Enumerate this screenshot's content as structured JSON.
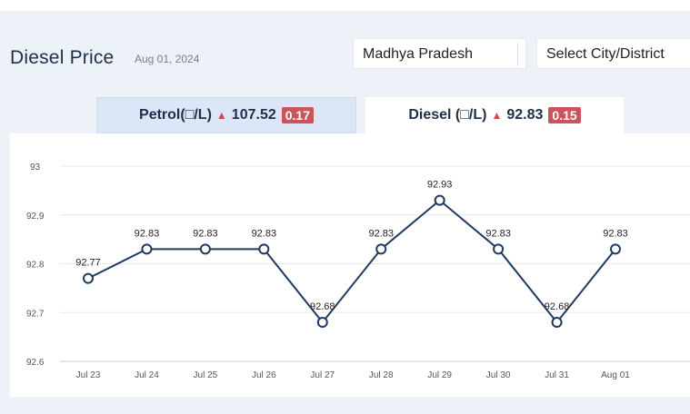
{
  "header": {
    "title": "Diesel Price",
    "date": "Aug 01, 2024"
  },
  "filters": {
    "state": "Madhya Pradesh",
    "city": "Select City/District"
  },
  "tabs": [
    {
      "label": "Petrol(□/L)",
      "price": "107.52",
      "change": "0.17"
    },
    {
      "label": "Diesel (□/L)",
      "price": "92.83",
      "change": "0.15"
    }
  ],
  "colors": {
    "line": "#1f3a5f",
    "change_up": "#c9545a",
    "active_tab": "#ffffff",
    "inactive_tab": "#dce6f7"
  },
  "chart_data": {
    "type": "line",
    "title": "",
    "xlabel": "",
    "ylabel": "",
    "categories": [
      "Jul 23",
      "Jul 24",
      "Jul 25",
      "Jul 26",
      "Jul 27",
      "Jul 28",
      "Jul 29",
      "Jul 30",
      "Jul 31",
      "Aug 01"
    ],
    "series": [
      {
        "values": [
          92.77,
          92.83,
          92.83,
          92.83,
          92.68,
          92.83,
          92.93,
          92.83,
          92.68,
          92.83
        ]
      }
    ],
    "data_labels": [
      "92.77",
      "92.83",
      "92.83",
      "92.83",
      "92.68",
      "92.83",
      "92.93",
      "92.83",
      "92.68",
      "92.83"
    ],
    "yticks": [
      "92.6",
      "92.7",
      "92.8",
      "92.9",
      "93"
    ],
    "ylim": [
      92.6,
      93.0
    ],
    "grid": true
  }
}
